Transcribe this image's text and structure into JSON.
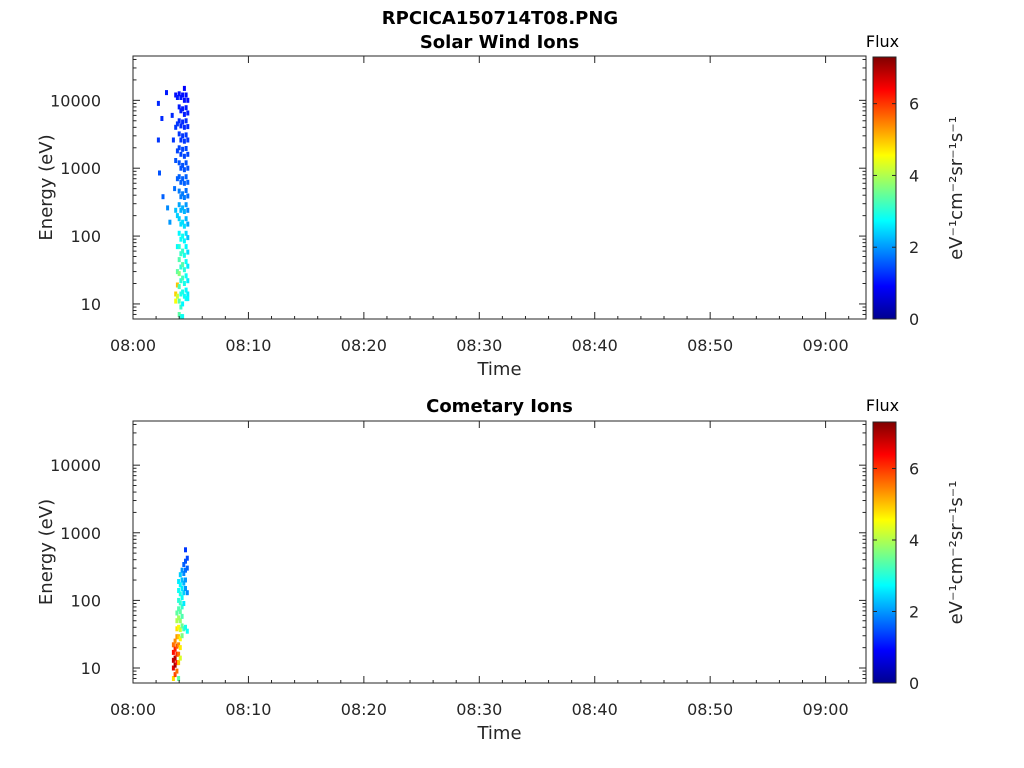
{
  "figure_title": "RPCICA150714T08.PNG",
  "chart_data": [
    {
      "type": "heatmap",
      "title": "Solar Wind Ions",
      "xlabel": "Time",
      "ylabel": "Energy (eV)",
      "y_scale": "log",
      "ylim": [
        6,
        45000
      ],
      "x_range_minutes": [
        0,
        63.5
      ],
      "x_ticks": [
        {
          "label": "08:00",
          "minute": 0
        },
        {
          "label": "08:10",
          "minute": 10
        },
        {
          "label": "08:20",
          "minute": 20
        },
        {
          "label": "08:30",
          "minute": 30
        },
        {
          "label": "08:40",
          "minute": 40
        },
        {
          "label": "08:50",
          "minute": 50
        },
        {
          "label": "09:00",
          "minute": 60
        }
      ],
      "y_ticks": [
        {
          "label": "10",
          "value": 10
        },
        {
          "label": "100",
          "value": 100
        },
        {
          "label": "1000",
          "value": 1000
        },
        {
          "label": "10000",
          "value": 10000
        }
      ],
      "colorbar": {
        "title": "Flux",
        "unit": "eV⁻¹cm⁻²sr⁻¹s⁻¹",
        "range": [
          0,
          7.3
        ],
        "colormap": "jet",
        "ticks": [
          "0",
          "2",
          "4",
          "6"
        ],
        "tick_values": [
          0,
          2,
          4,
          6
        ]
      },
      "cells": [
        [
          2.2,
          9000,
          1.2
        ],
        [
          2.2,
          2600,
          1.3
        ],
        [
          2.3,
          850,
          1.5
        ],
        [
          2.5,
          5400,
          1.2
        ],
        [
          2.6,
          380,
          1.6
        ],
        [
          2.9,
          13000,
          1.1
        ],
        [
          3.0,
          260,
          1.9
        ],
        [
          3.2,
          160,
          2.0
        ],
        [
          3.4,
          6000,
          1.2
        ],
        [
          3.5,
          2600,
          1.3
        ],
        [
          3.6,
          500,
          1.7
        ],
        [
          3.7,
          12000,
          1.0
        ],
        [
          3.7,
          4000,
          1.3
        ],
        [
          3.7,
          1300,
          1.5
        ],
        [
          3.7,
          240,
          2.3
        ],
        [
          3.7,
          14,
          4.9
        ],
        [
          3.7,
          11,
          4.5
        ],
        [
          3.85,
          11000,
          1.1
        ],
        [
          3.85,
          4500,
          1.3
        ],
        [
          3.85,
          1800,
          1.4
        ],
        [
          3.85,
          700,
          1.6
        ],
        [
          3.85,
          200,
          2.4
        ],
        [
          3.85,
          70,
          2.7
        ],
        [
          3.85,
          30,
          3.4
        ],
        [
          3.85,
          19,
          5.0
        ],
        [
          3.85,
          13,
          4.2
        ],
        [
          4.0,
          12500,
          1.0
        ],
        [
          4.0,
          8000,
          1.1
        ],
        [
          4.0,
          5000,
          1.2
        ],
        [
          4.0,
          3200,
          1.3
        ],
        [
          4.0,
          2000,
          1.4
        ],
        [
          4.0,
          1200,
          1.5
        ],
        [
          4.0,
          750,
          1.6
        ],
        [
          4.0,
          460,
          1.8
        ],
        [
          4.0,
          290,
          2.1
        ],
        [
          4.0,
          180,
          2.4
        ],
        [
          4.0,
          110,
          2.7
        ],
        [
          4.0,
          70,
          3.0
        ],
        [
          4.0,
          45,
          3.3
        ],
        [
          4.0,
          28,
          3.7
        ],
        [
          4.0,
          18,
          3.2
        ],
        [
          4.0,
          11,
          3.3
        ],
        [
          4.0,
          7,
          3.4
        ],
        [
          4.15,
          11000,
          1.1
        ],
        [
          4.15,
          7000,
          1.1
        ],
        [
          4.15,
          4200,
          1.2
        ],
        [
          4.15,
          2600,
          1.3
        ],
        [
          4.15,
          1600,
          1.4
        ],
        [
          4.15,
          1000,
          1.5
        ],
        [
          4.15,
          620,
          1.6
        ],
        [
          4.15,
          380,
          1.8
        ],
        [
          4.15,
          240,
          2.2
        ],
        [
          4.15,
          150,
          2.5
        ],
        [
          4.15,
          90,
          2.8
        ],
        [
          4.15,
          55,
          3.1
        ],
        [
          4.15,
          35,
          3.0
        ],
        [
          4.15,
          22,
          3.0
        ],
        [
          4.15,
          14,
          2.9
        ],
        [
          4.15,
          9,
          3.1
        ],
        [
          4.15,
          6.5,
          3.0
        ],
        [
          4.3,
          12000,
          1.0
        ],
        [
          4.3,
          7500,
          1.1
        ],
        [
          4.3,
          4800,
          1.2
        ],
        [
          4.3,
          3000,
          1.3
        ],
        [
          4.3,
          1900,
          1.4
        ],
        [
          4.3,
          1100,
          1.5
        ],
        [
          4.3,
          700,
          1.6
        ],
        [
          4.3,
          420,
          1.8
        ],
        [
          4.3,
          260,
          2.2
        ],
        [
          4.3,
          160,
          2.5
        ],
        [
          4.3,
          100,
          2.8
        ],
        [
          4.3,
          60,
          3.1
        ],
        [
          4.3,
          38,
          3.3
        ],
        [
          4.3,
          24,
          3.2
        ],
        [
          4.3,
          15,
          2.9
        ],
        [
          4.3,
          10,
          2.7
        ],
        [
          4.3,
          6.5,
          2.8
        ],
        [
          4.45,
          15000,
          0.9
        ],
        [
          4.45,
          10000,
          1.0
        ],
        [
          4.45,
          6200,
          1.1
        ],
        [
          4.45,
          4000,
          1.2
        ],
        [
          4.45,
          2500,
          1.3
        ],
        [
          4.45,
          1500,
          1.4
        ],
        [
          4.45,
          950,
          1.5
        ],
        [
          4.45,
          600,
          1.6
        ],
        [
          4.45,
          370,
          1.8
        ],
        [
          4.45,
          230,
          2.2
        ],
        [
          4.45,
          140,
          2.5
        ],
        [
          4.45,
          85,
          2.7
        ],
        [
          4.45,
          52,
          2.9
        ],
        [
          4.45,
          32,
          3.0
        ],
        [
          4.45,
          20,
          2.9
        ],
        [
          4.45,
          13,
          2.8
        ],
        [
          4.6,
          12000,
          1.0
        ],
        [
          4.6,
          7800,
          1.1
        ],
        [
          4.6,
          5000,
          1.2
        ],
        [
          4.6,
          3100,
          1.3
        ],
        [
          4.6,
          1950,
          1.4
        ],
        [
          4.6,
          1200,
          1.5
        ],
        [
          4.6,
          750,
          1.6
        ],
        [
          4.6,
          470,
          1.7
        ],
        [
          4.6,
          290,
          2.0
        ],
        [
          4.6,
          180,
          2.2
        ],
        [
          4.6,
          110,
          2.5
        ],
        [
          4.6,
          70,
          2.7
        ],
        [
          4.6,
          42,
          2.8
        ],
        [
          4.6,
          26,
          2.8
        ],
        [
          4.6,
          16,
          2.7
        ],
        [
          4.6,
          12,
          2.8
        ],
        [
          4.75,
          10000,
          1.0
        ],
        [
          4.75,
          6500,
          1.1
        ],
        [
          4.75,
          4100,
          1.2
        ],
        [
          4.75,
          2600,
          1.3
        ],
        [
          4.75,
          1600,
          1.4
        ],
        [
          4.75,
          1000,
          1.5
        ],
        [
          4.75,
          620,
          1.6
        ],
        [
          4.75,
          390,
          1.7
        ],
        [
          4.75,
          240,
          1.9
        ],
        [
          4.75,
          150,
          2.1
        ],
        [
          4.75,
          95,
          2.3
        ],
        [
          4.75,
          58,
          2.5
        ],
        [
          4.75,
          36,
          2.6
        ],
        [
          4.75,
          22,
          2.6
        ],
        [
          4.75,
          14,
          2.6
        ],
        [
          4.75,
          12,
          2.7
        ]
      ]
    },
    {
      "type": "heatmap",
      "title": "Cometary Ions",
      "xlabel": "Time",
      "ylabel": "Energy (eV)",
      "y_scale": "log",
      "ylim": [
        6,
        45000
      ],
      "x_range_minutes": [
        0,
        63.5
      ],
      "x_ticks": [
        {
          "label": "08:00",
          "minute": 0
        },
        {
          "label": "08:10",
          "minute": 10
        },
        {
          "label": "08:20",
          "minute": 20
        },
        {
          "label": "08:30",
          "minute": 30
        },
        {
          "label": "08:40",
          "minute": 40
        },
        {
          "label": "08:50",
          "minute": 50
        },
        {
          "label": "09:00",
          "minute": 60
        }
      ],
      "y_ticks": [
        {
          "label": "10",
          "value": 10
        },
        {
          "label": "100",
          "value": 100
        },
        {
          "label": "1000",
          "value": 1000
        },
        {
          "label": "10000",
          "value": 10000
        }
      ],
      "colorbar": {
        "title": "Flux",
        "unit": "eV⁻¹cm⁻²sr⁻¹s⁻¹",
        "range": [
          0,
          7.3
        ],
        "colormap": "jet",
        "ticks": [
          "0",
          "2",
          "4",
          "6"
        ],
        "tick_values": [
          0,
          2,
          4,
          6
        ]
      },
      "cells": [
        [
          3.5,
          7,
          4.8
        ],
        [
          3.5,
          10,
          6.6
        ],
        [
          3.5,
          13,
          6.8
        ],
        [
          3.5,
          17,
          6.3
        ],
        [
          3.5,
          22,
          5.6
        ],
        [
          3.65,
          8,
          5.9
        ],
        [
          3.65,
          11,
          7.0
        ],
        [
          3.65,
          14,
          6.9
        ],
        [
          3.65,
          19,
          6.2
        ],
        [
          3.65,
          25,
          5.4
        ],
        [
          3.8,
          9,
          5.6
        ],
        [
          3.8,
          12,
          6.3
        ],
        [
          3.8,
          16,
          6.1
        ],
        [
          3.8,
          21,
          5.8
        ],
        [
          3.8,
          29,
          5.3
        ],
        [
          3.8,
          38,
          4.8
        ],
        [
          3.8,
          50,
          4.0
        ],
        [
          3.8,
          65,
          3.4
        ],
        [
          3.95,
          7,
          3.4
        ],
        [
          3.95,
          12,
          5.0
        ],
        [
          3.95,
          16,
          5.6
        ],
        [
          3.95,
          22,
          5.4
        ],
        [
          3.95,
          29,
          5.0
        ],
        [
          3.95,
          40,
          4.6
        ],
        [
          3.95,
          55,
          3.9
        ],
        [
          3.95,
          75,
          3.3
        ],
        [
          3.95,
          100,
          3.0
        ],
        [
          3.95,
          140,
          2.8
        ],
        [
          3.95,
          190,
          2.6
        ],
        [
          4.1,
          14,
          4.3
        ],
        [
          4.1,
          20,
          4.7
        ],
        [
          4.1,
          27,
          4.6
        ],
        [
          4.1,
          37,
          4.2
        ],
        [
          4.1,
          50,
          3.8
        ],
        [
          4.1,
          68,
          3.4
        ],
        [
          4.1,
          92,
          3.1
        ],
        [
          4.1,
          125,
          2.9
        ],
        [
          4.1,
          170,
          2.7
        ],
        [
          4.1,
          240,
          2.4
        ],
        [
          4.25,
          30,
          3.6
        ],
        [
          4.25,
          42,
          3.5
        ],
        [
          4.25,
          58,
          3.3
        ],
        [
          4.25,
          80,
          3.1
        ],
        [
          4.25,
          110,
          2.8
        ],
        [
          4.25,
          150,
          2.6
        ],
        [
          4.25,
          200,
          2.3
        ],
        [
          4.25,
          280,
          2.0
        ],
        [
          4.4,
          38,
          3.2
        ],
        [
          4.4,
          90,
          2.6
        ],
        [
          4.4,
          130,
          2.4
        ],
        [
          4.4,
          180,
          2.2
        ],
        [
          4.4,
          250,
          1.9
        ],
        [
          4.4,
          340,
          1.6
        ],
        [
          4.55,
          40,
          2.9
        ],
        [
          4.55,
          150,
          2.0
        ],
        [
          4.55,
          200,
          2.0
        ],
        [
          4.55,
          280,
          1.7
        ],
        [
          4.55,
          380,
          1.5
        ],
        [
          4.55,
          560,
          1.3
        ],
        [
          4.7,
          35,
          2.8
        ],
        [
          4.7,
          130,
          1.9
        ],
        [
          4.7,
          300,
          1.6
        ],
        [
          4.7,
          420,
          1.4
        ]
      ]
    }
  ]
}
